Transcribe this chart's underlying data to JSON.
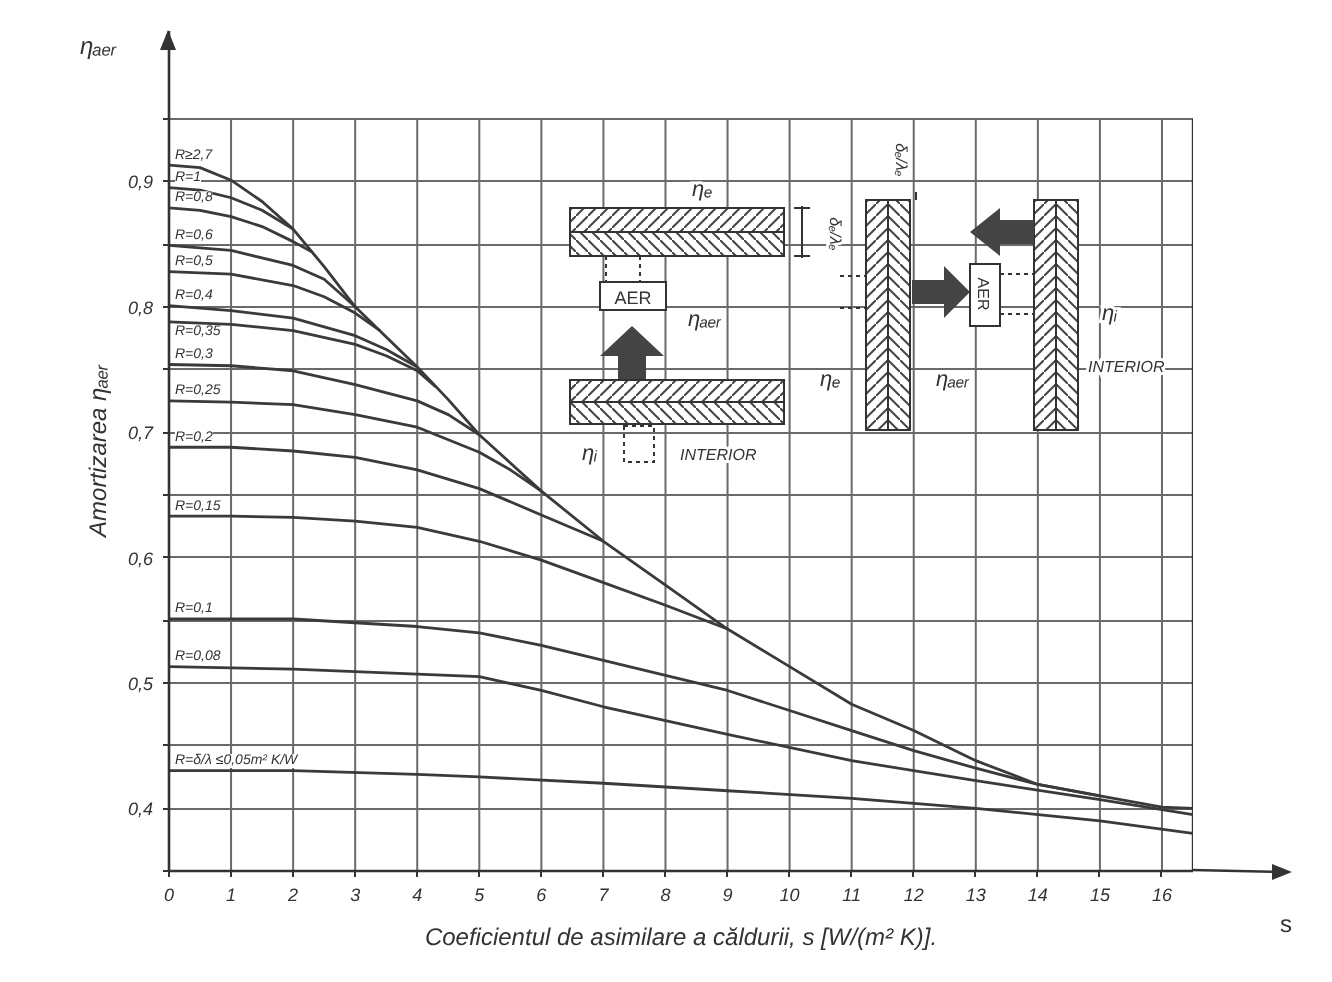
{
  "chart_data": {
    "type": "line",
    "xlabel": "Coeficientul de asimilare a căldurii, s [W/(m² K)].",
    "ylabel": "Amortizarea ηₐₑᵣ",
    "xlim": [
      0,
      16.5
    ],
    "ylim": [
      0.35,
      1.02
    ],
    "xticks": [
      0,
      1,
      2,
      3,
      4,
      5,
      6,
      7,
      8,
      9,
      10,
      11,
      12,
      13,
      14,
      15,
      16
    ],
    "yticks": [
      {
        "value": 0.35,
        "label": null
      },
      {
        "value": 0.4,
        "label": "0,4"
      },
      {
        "value": 0.45,
        "label": null
      },
      {
        "value": 0.5,
        "label": "0,5"
      },
      {
        "value": 0.55,
        "label": null
      },
      {
        "value": 0.6,
        "label": "0,6"
      },
      {
        "value": 0.65,
        "label": null
      },
      {
        "value": 0.7,
        "label": "0,7"
      },
      {
        "value": 0.75,
        "label": null
      },
      {
        "value": 0.8,
        "label": "0,8"
      },
      {
        "value": 0.85,
        "label": null
      },
      {
        "value": 0.9,
        "label": "0,9"
      },
      {
        "value": 0.95,
        "label": null
      }
    ],
    "grid": true,
    "series": [
      {
        "name": "R≥2,7",
        "color": "#3a3a3a",
        "x": [
          0,
          0.5,
          1,
          1.5,
          2,
          2.5,
          3,
          3.5,
          4,
          4.5,
          5,
          6,
          7,
          8,
          9,
          10,
          11,
          12,
          13,
          14,
          15,
          16,
          16.5
        ],
        "values": [
          0.913,
          0.911,
          0.901,
          0.884,
          0.862,
          0.832,
          0.8,
          0.776,
          0.752,
          0.726,
          0.698,
          0.653,
          0.613,
          0.578,
          0.543,
          0.513,
          0.483,
          0.462,
          0.438,
          0.419,
          0.41,
          0.401,
          0.4
        ]
      },
      {
        "name": "R=1",
        "color": "#3a3a3a",
        "x": [
          0,
          0.5,
          1,
          1.5,
          2
        ],
        "values": [
          0.895,
          0.893,
          0.887,
          0.877,
          0.862
        ]
      },
      {
        "name": "R=0,8",
        "color": "#3a3a3a",
        "x": [
          0,
          0.5,
          1,
          1.5,
          2,
          2.3
        ],
        "values": [
          0.879,
          0.877,
          0.872,
          0.864,
          0.852,
          0.844
        ]
      },
      {
        "name": "R=0,6",
        "color": "#3a3a3a",
        "x": [
          0,
          1,
          2,
          2.5,
          3
        ],
        "values": [
          0.849,
          0.845,
          0.833,
          0.822,
          0.8
        ]
      },
      {
        "name": "R=0,5",
        "color": "#3a3a3a",
        "x": [
          0,
          1,
          2,
          2.5,
          3,
          3.4
        ],
        "values": [
          0.828,
          0.826,
          0.817,
          0.808,
          0.795,
          0.781
        ]
      },
      {
        "name": "R=0,4",
        "color": "#3a3a3a",
        "x": [
          0,
          1,
          2,
          3,
          3.5,
          4
        ],
        "values": [
          0.801,
          0.797,
          0.791,
          0.777,
          0.766,
          0.752
        ]
      },
      {
        "name": "R=0,35",
        "color": "#3a3a3a",
        "x": [
          0,
          1,
          2,
          3,
          3.5,
          4,
          4.3
        ],
        "values": [
          0.788,
          0.786,
          0.781,
          0.77,
          0.761,
          0.749,
          0.736
        ]
      },
      {
        "name": "R=0,3",
        "color": "#3a3a3a",
        "x": [
          0,
          1,
          2,
          3,
          4,
          4.5,
          5
        ],
        "values": [
          0.754,
          0.753,
          0.749,
          0.738,
          0.725,
          0.714,
          0.698
        ]
      },
      {
        "name": "R=0,25",
        "color": "#3a3a3a",
        "x": [
          0,
          1,
          2,
          3,
          4,
          5,
          5.5,
          6
        ],
        "values": [
          0.725,
          0.724,
          0.722,
          0.714,
          0.704,
          0.684,
          0.67,
          0.653
        ]
      },
      {
        "name": "R=0,2",
        "color": "#3a3a3a",
        "x": [
          0,
          1,
          2,
          3,
          4,
          5,
          6,
          7
        ],
        "values": [
          0.688,
          0.688,
          0.685,
          0.68,
          0.67,
          0.655,
          0.634,
          0.613
        ]
      },
      {
        "name": "R=0,15",
        "color": "#3a3a3a",
        "x": [
          0,
          1,
          2,
          3,
          4,
          5,
          6,
          7,
          8,
          9
        ],
        "values": [
          0.633,
          0.633,
          0.632,
          0.629,
          0.624,
          0.613,
          0.598,
          0.58,
          0.562,
          0.543
        ]
      },
      {
        "name": "R=0,1",
        "color": "#3a3a3a",
        "x": [
          0,
          2,
          4,
          5,
          6,
          7,
          8,
          9,
          10,
          11,
          12,
          13,
          14,
          15
        ],
        "values": [
          0.551,
          0.551,
          0.545,
          0.54,
          0.53,
          0.518,
          0.506,
          0.494,
          0.478,
          0.462,
          0.446,
          0.432,
          0.419,
          0.41
        ]
      },
      {
        "name": "R=0,08",
        "color": "#3a3a3a",
        "x": [
          0,
          2,
          4,
          5,
          6,
          7,
          9,
          11,
          13,
          15,
          16.5
        ],
        "values": [
          0.513,
          0.511,
          0.507,
          0.505,
          0.494,
          0.481,
          0.459,
          0.438,
          0.422,
          0.407,
          0.395
        ]
      },
      {
        "name": "R=δ/λ ≤0,05m² K/W",
        "color": "#3a3a3a",
        "x": [
          0,
          2,
          4,
          5,
          7,
          9,
          11,
          13,
          15,
          16.5
        ],
        "values": [
          0.43,
          0.43,
          0.427,
          0.425,
          0.42,
          0.414,
          0.408,
          0.4,
          0.39,
          0.38
        ]
      }
    ],
    "annotations": [
      "ηₐₑᵣ",
      "s",
      "ηₑ",
      "AER",
      "ηₐₑᵣ",
      "ηᵢ",
      "INTERIOR",
      "ηₑ",
      "AER",
      "ηₐₑᵣ",
      "ηᵢ",
      "INTERIOR",
      "δₑ/λₑ",
      "δₑ/λₑ"
    ]
  }
}
